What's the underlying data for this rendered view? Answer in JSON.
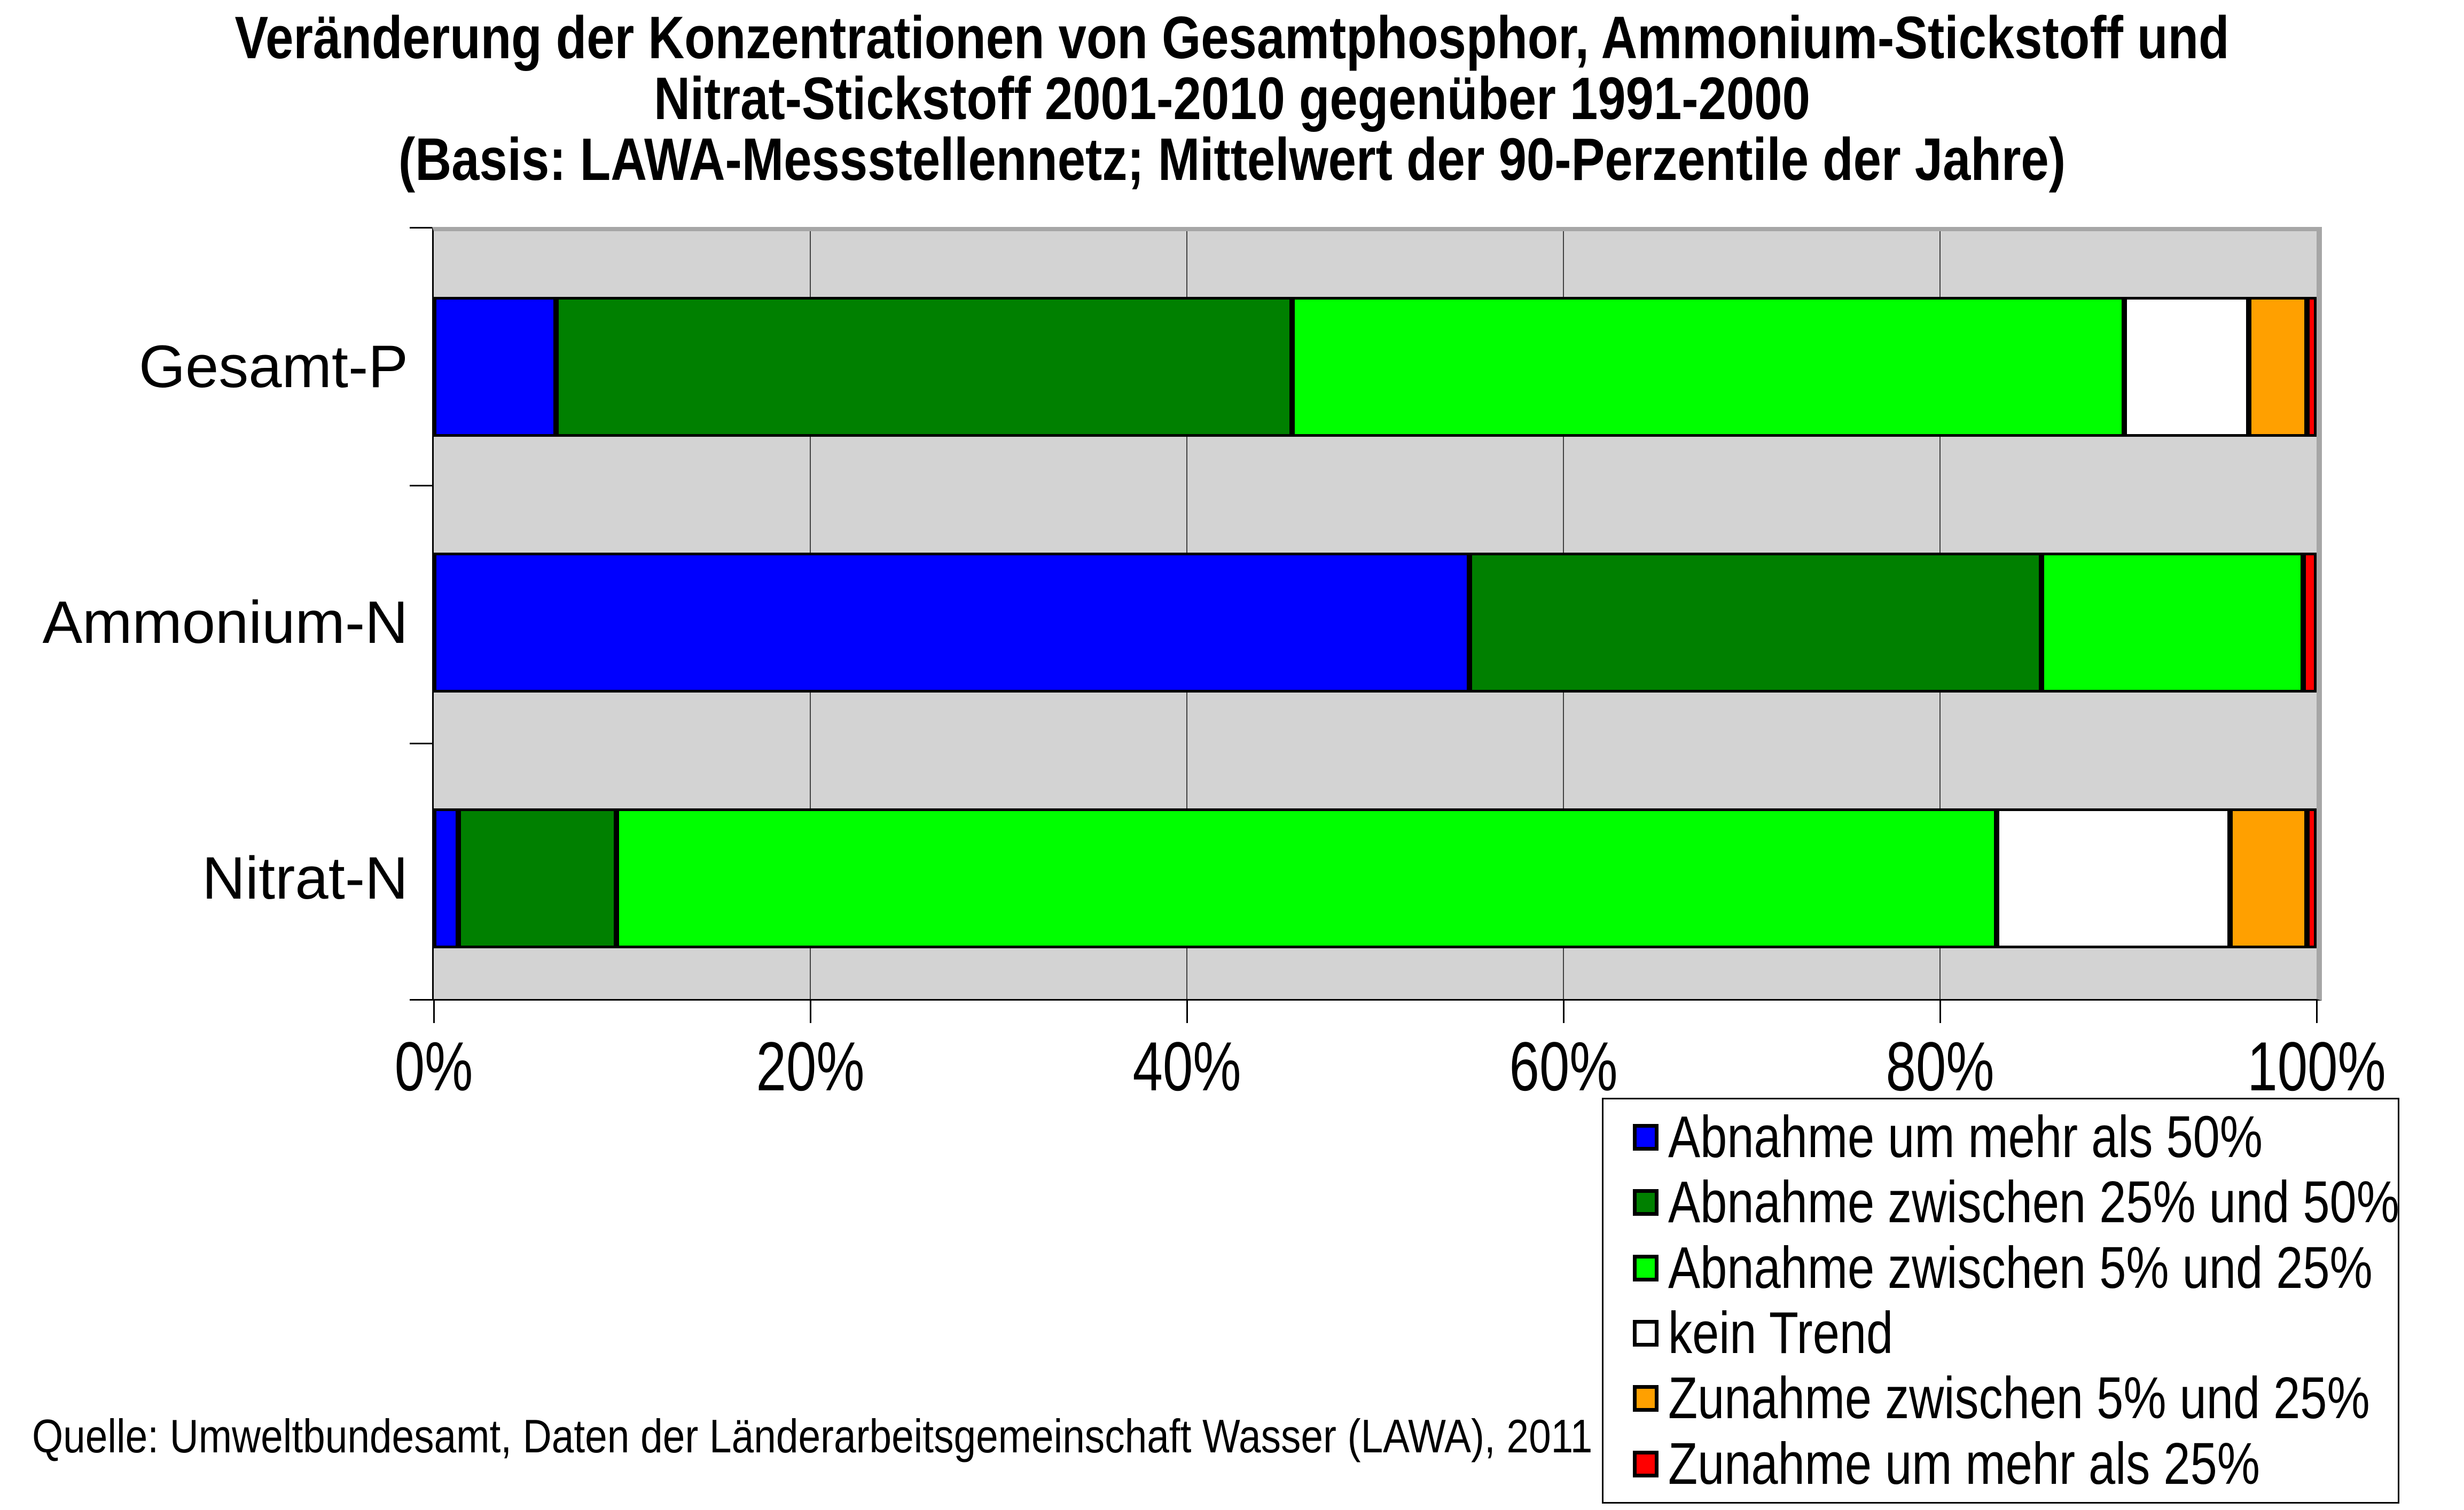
{
  "source_note": "Quelle: Umweltbundesamt, Daten der Länderarbeitsgemeinschaft Wasser (LAWA), 2011",
  "colors": {
    "page_background": "#FFFFFF",
    "plot_background": "#D3D3D3",
    "plot_frame": "#A6A6A6",
    "axis": "#000000",
    "gridline": "#404040",
    "bar_border": "#000000",
    "legend_background": "#FFFFFF"
  },
  "chart_data": {
    "type": "bar",
    "variant": "horizontal-stacked-100-percent",
    "title_lines": [
      "Veränderung der Konzentrationen von Gesamtphosphor, Ammonium-Stickstoff und",
      "Nitrat-Stickstoff 2001-2010 gegenüber 1991-2000",
      "(Basis: LAWA-Messstellennetz; Mittelwert der 90-Perzentile der Jahre)"
    ],
    "categories": [
      "Gesamt-P",
      "Ammonium-N",
      "Nitrat-N"
    ],
    "series": [
      {
        "name": "Abnahme um mehr als 50%",
        "color": "#0000FF",
        "values": [
          6.5,
          55.0,
          1.3
        ]
      },
      {
        "name": "Abnahme zwischen 25% und 50%",
        "color": "#008000",
        "values": [
          39.1,
          30.4,
          8.4
        ]
      },
      {
        "name": "Abnahme zwischen 5% und 25%",
        "color": "#00FF00",
        "values": [
          44.2,
          13.9,
          73.3
        ]
      },
      {
        "name": "kein Trend",
        "color": "#FFFFFF",
        "values": [
          6.6,
          0,
          12.4
        ]
      },
      {
        "name": "Zunahme zwischen 5% und 25%",
        "color": "#FFA000",
        "values": [
          3.1,
          0,
          4.1
        ]
      },
      {
        "name": "Zunahme um mehr als 25%",
        "color": "#FF0000",
        "values": [
          0.5,
          0.7,
          0.5
        ]
      }
    ],
    "x_ticks": [
      "0%",
      "20%",
      "40%",
      "60%",
      "80%",
      "100%"
    ],
    "xlim": [
      0,
      100
    ],
    "xlabel": "",
    "ylabel": "",
    "grid": "vertical-major-only",
    "legend_position": "bottom-right"
  }
}
